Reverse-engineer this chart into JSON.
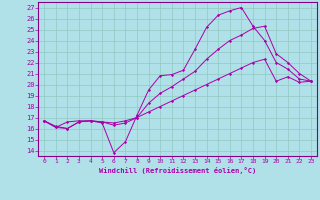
{
  "xlabel": "Windchill (Refroidissement éolien,°C)",
  "background_color": "#b0e0e8",
  "grid_color": "#90c8c0",
  "line_color": "#aa00aa",
  "spine_color": "#880088",
  "xlim": [
    -0.5,
    23.5
  ],
  "ylim": [
    13.5,
    27.5
  ],
  "xticks": [
    0,
    1,
    2,
    3,
    4,
    5,
    6,
    7,
    8,
    9,
    10,
    11,
    12,
    13,
    14,
    15,
    16,
    17,
    18,
    19,
    20,
    21,
    22,
    23
  ],
  "yticks": [
    14,
    15,
    16,
    17,
    18,
    19,
    20,
    21,
    22,
    23,
    24,
    25,
    26,
    27
  ],
  "lines": [
    {
      "x": [
        0,
        1,
        2,
        3,
        4,
        5,
        6,
        7,
        8,
        9,
        10,
        11,
        12,
        13,
        14,
        15,
        16,
        17,
        18,
        19,
        20,
        21,
        22,
        23
      ],
      "y": [
        16.7,
        16.1,
        16.0,
        16.6,
        16.7,
        16.5,
        13.8,
        14.8,
        17.2,
        19.5,
        20.8,
        20.9,
        21.3,
        23.2,
        25.2,
        26.3,
        26.7,
        27.0,
        25.3,
        24.0,
        22.0,
        21.4,
        20.5,
        20.3
      ]
    },
    {
      "x": [
        0,
        1,
        2,
        3,
        4,
        5,
        6,
        7,
        8,
        9,
        10,
        11,
        12,
        13,
        14,
        15,
        16,
        17,
        18,
        19,
        20,
        21,
        22,
        23
      ],
      "y": [
        16.7,
        16.1,
        16.6,
        16.7,
        16.7,
        16.6,
        16.3,
        16.5,
        17.0,
        18.3,
        19.2,
        19.8,
        20.5,
        21.2,
        22.3,
        23.2,
        24.0,
        24.5,
        25.1,
        25.3,
        22.8,
        22.0,
        21.0,
        20.3
      ]
    },
    {
      "x": [
        0,
        1,
        2,
        3,
        4,
        5,
        6,
        7,
        8,
        9,
        10,
        11,
        12,
        13,
        14,
        15,
        16,
        17,
        18,
        19,
        20,
        21,
        22,
        23
      ],
      "y": [
        16.7,
        16.2,
        16.0,
        16.6,
        16.7,
        16.6,
        16.5,
        16.7,
        17.0,
        17.5,
        18.0,
        18.5,
        19.0,
        19.5,
        20.0,
        20.5,
        21.0,
        21.5,
        22.0,
        22.3,
        20.3,
        20.7,
        20.2,
        20.3
      ]
    }
  ]
}
